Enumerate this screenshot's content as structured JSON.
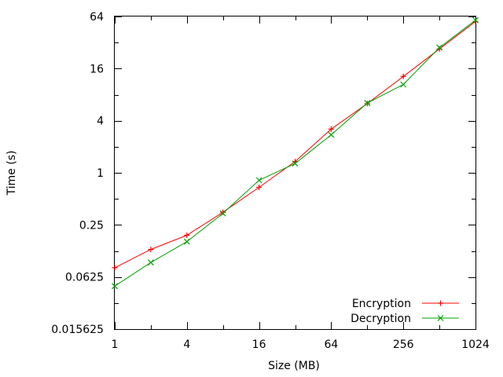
{
  "chart_data": {
    "type": "line",
    "title": "",
    "xlabel": "Size (MB)",
    "ylabel": "Time (s)",
    "x_scale": "log2",
    "y_scale": "log2",
    "xlim": [
      1,
      1024
    ],
    "ylim": [
      0.015625,
      64
    ],
    "x_ticks": [
      "1",
      "4",
      "16",
      "64",
      "256",
      "1024"
    ],
    "x_tick_values": [
      1,
      4,
      16,
      64,
      256,
      1024
    ],
    "y_ticks": [
      "0.015625",
      "0.0625",
      "0.25",
      "1",
      "4",
      "16",
      "64"
    ],
    "y_tick_values": [
      0.015625,
      0.0625,
      0.25,
      1,
      4,
      16,
      64
    ],
    "legend_position": "bottom-right",
    "grid": false,
    "series": [
      {
        "name": "Encryption",
        "color": "#ff0000",
        "marker": "plus",
        "x": [
          1,
          2,
          4,
          8,
          16,
          32,
          64,
          128,
          256,
          512,
          1024
        ],
        "y": [
          0.08,
          0.13,
          0.19,
          0.35,
          0.68,
          1.35,
          3.2,
          6.3,
          13.0,
          27.0,
          56.0
        ]
      },
      {
        "name": "Decryption",
        "color": "#00a000",
        "marker": "cross",
        "x": [
          1,
          2,
          4,
          8,
          16,
          32,
          64,
          128,
          256,
          512,
          1024
        ],
        "y": [
          0.049,
          0.092,
          0.16,
          0.34,
          0.82,
          1.28,
          2.75,
          6.4,
          10.5,
          28.0,
          58.0
        ]
      }
    ]
  }
}
